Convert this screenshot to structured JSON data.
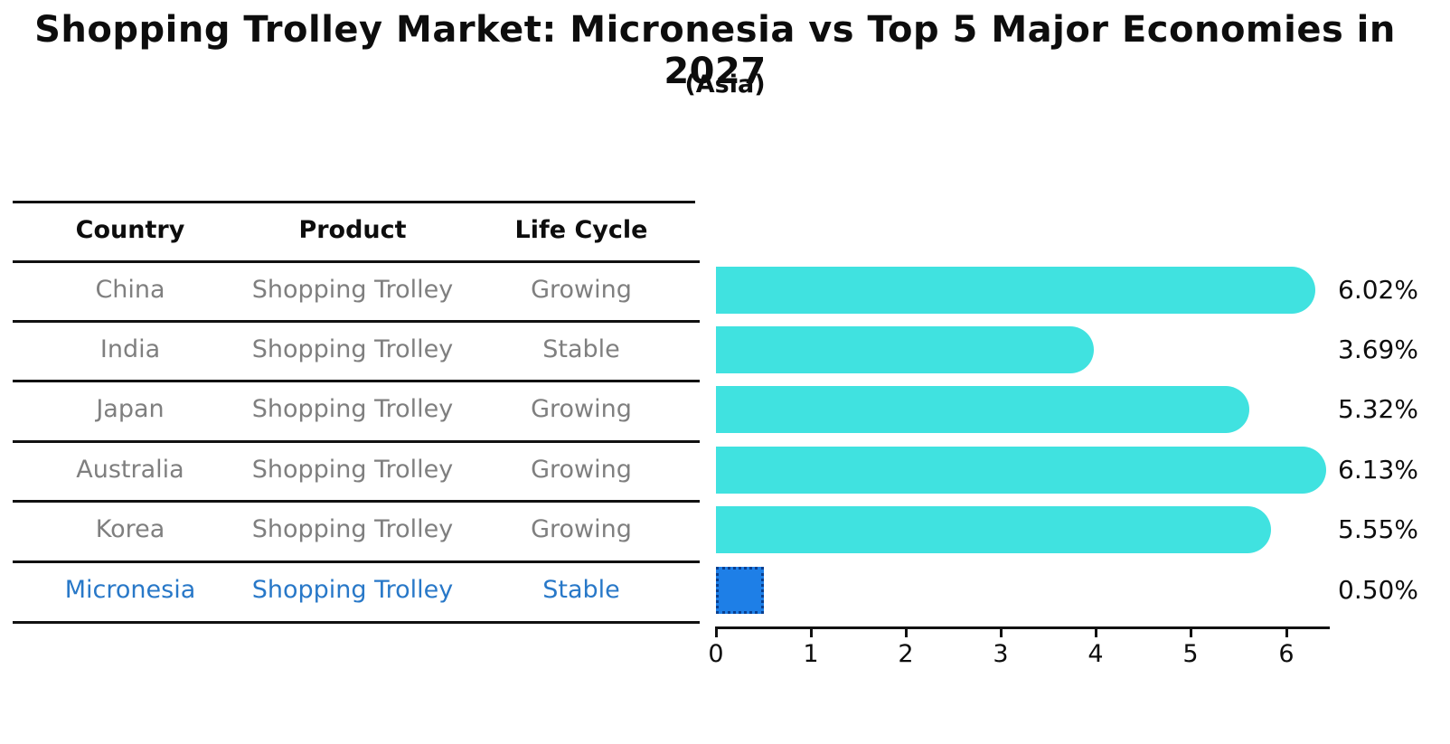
{
  "title": "Shopping Trolley Market: Micronesia vs Top 5 Major Economies in 2027",
  "subtitle": "(Asia)",
  "table": {
    "headers": {
      "country": "Country",
      "product": "Product",
      "life_cycle": "Life Cycle"
    },
    "rows": [
      {
        "country": "China",
        "product": "Shopping Trolley",
        "life_cycle": "Growing",
        "highlight": false
      },
      {
        "country": "India",
        "product": "Shopping Trolley",
        "life_cycle": "Stable",
        "highlight": false
      },
      {
        "country": "Japan",
        "product": "Shopping Trolley",
        "life_cycle": "Growing",
        "highlight": false
      },
      {
        "country": "Australia",
        "product": "Shopping Trolley",
        "life_cycle": "Growing",
        "highlight": false
      },
      {
        "country": "Korea",
        "product": "Shopping Trolley",
        "life_cycle": "Growing",
        "highlight": false
      },
      {
        "country": "Micronesia",
        "product": "Shopping Trolley",
        "life_cycle": "Stable",
        "highlight": true
      }
    ]
  },
  "chart_data": {
    "type": "bar",
    "orientation": "horizontal",
    "categories": [
      "China",
      "India",
      "Japan",
      "Australia",
      "Korea",
      "Micronesia"
    ],
    "values": [
      6.02,
      3.69,
      5.32,
      6.13,
      5.55,
      0.5
    ],
    "value_labels": [
      "6.02%",
      "3.69%",
      "5.32%",
      "6.13%",
      "5.55%",
      "0.50%"
    ],
    "x_ticks": [
      0,
      1,
      2,
      3,
      4,
      5,
      6
    ],
    "xlim": [
      0,
      6.45
    ],
    "grid": false,
    "legend": false,
    "highlight_index": 5,
    "bar_color": "#40e2e0",
    "highlight_bar_color": "#1e7fe7",
    "highlight_border_color": "#0a3f8f",
    "value_label_color": "#0d0d0d"
  },
  "colors": {
    "background": "#ffffff",
    "table_line": "#111111",
    "header_text": "#0d0d0d",
    "row_text": "#7f7f7f",
    "highlight_text": "#2878c8"
  }
}
